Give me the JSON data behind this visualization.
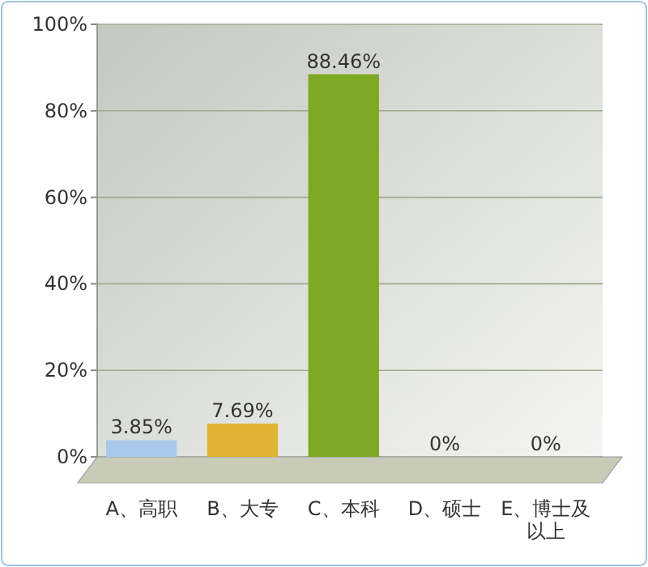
{
  "chart_data": {
    "type": "bar",
    "categories": [
      "A、高职",
      "B、大专",
      "C、本科",
      "D、硕士",
      "E、博士及以上"
    ],
    "values": [
      3.85,
      7.69,
      88.46,
      0,
      0
    ],
    "colors": [
      "#a9c9ea",
      "#e2b232",
      "#7fa824",
      "#f29a78",
      "#2fa3a3"
    ],
    "value_labels": [
      "3.85%",
      "7.69%",
      "88.46%",
      "0%",
      "0%"
    ],
    "ylim": [
      0,
      100
    ],
    "yticks": [
      {
        "value": 0,
        "label": "0%"
      },
      {
        "value": 20,
        "label": "20%"
      },
      {
        "value": 40,
        "label": "40%"
      },
      {
        "value": 60,
        "label": "60%"
      },
      {
        "value": 80,
        "label": "80%"
      },
      {
        "value": 100,
        "label": "100%"
      }
    ],
    "grid": "y"
  }
}
